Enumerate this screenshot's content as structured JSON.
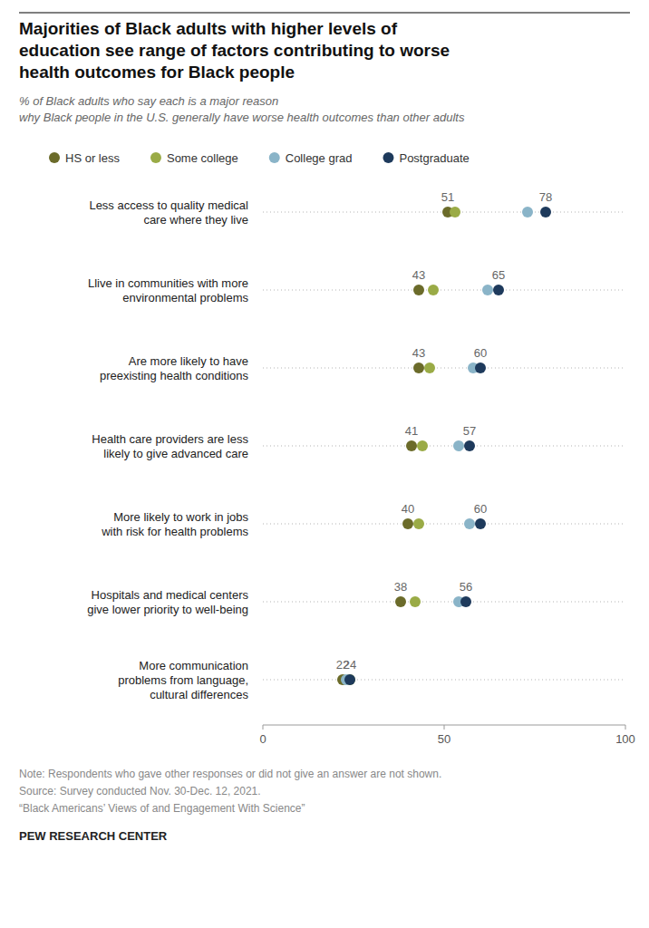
{
  "chart_data": {
    "type": "dot",
    "title": "Majorities of Black adults with higher levels of\neducation see range of factors contributing to worse\nhealth outcomes for Black people",
    "subtitle": "% of Black adults who say each is a major reason\nwhy Black people in the U.S. generally have worse health outcomes than other adults",
    "categories": [
      "Less access to quality medical\ncare where they live",
      "Llive in communities with more\nenvironmental problems",
      "Are more likely to have\npreexisting health conditions",
      "Health care providers are less\nlikely to give advanced care",
      "More likely to work in jobs\nwith risk for health problems",
      "Hospitals and medical centers\ngive lower priority to well-being",
      "More communication\nproblems from language,\ncultural differences"
    ],
    "series": [
      {
        "name": "HS or less",
        "color": "#6b6b2a",
        "values": [
          51,
          43,
          43,
          41,
          40,
          38,
          22
        ],
        "data_labels": true
      },
      {
        "name": "Some college",
        "color": "#9aab46",
        "values": [
          53,
          47,
          46,
          44,
          43,
          42,
          24
        ],
        "data_labels": false
      },
      {
        "name": "College grad",
        "color": "#8ab4c8",
        "values": [
          73,
          62,
          58,
          54,
          57,
          54,
          23
        ],
        "data_labels": false
      },
      {
        "name": "Postgraduate",
        "color": "#1e3a5c",
        "values": [
          78,
          65,
          60,
          57,
          60,
          56,
          24
        ],
        "data_labels": true
      }
    ],
    "xlim": [
      0,
      100
    ],
    "xticks": [
      0,
      50,
      100
    ],
    "legend": "top",
    "notes": [
      "Note: Respondents who gave other responses or did not give an answer are not shown.",
      "Source: Survey conducted Nov. 30-Dec. 12, 2021.",
      "“Black Americans’ Views of and Engagement With Science”"
    ],
    "source": "PEW RESEARCH CENTER"
  }
}
